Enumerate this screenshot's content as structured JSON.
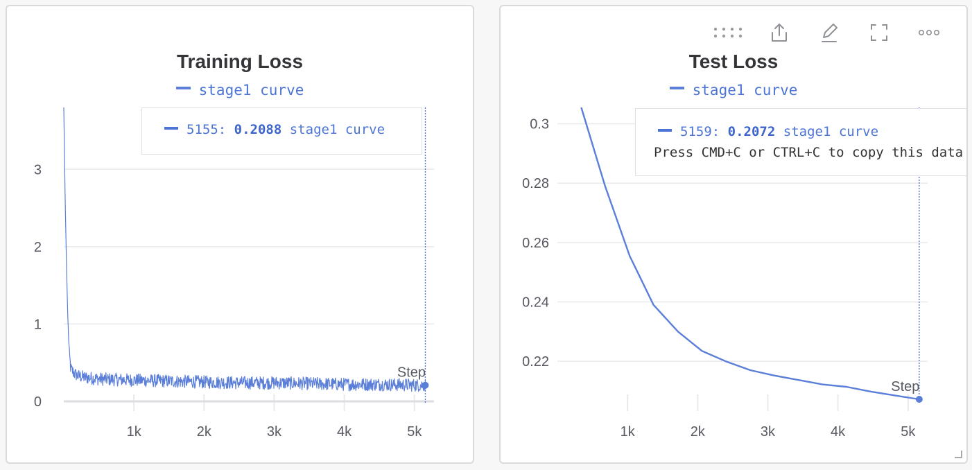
{
  "colors": {
    "series": "#5b7fd8",
    "series_text": "#4c74d6",
    "grid": "#e9eaed",
    "axis": "#dcdde0",
    "tick_text": "#555860"
  },
  "toolbar": {
    "icons": [
      "drag-handle-icon",
      "share-icon",
      "edit-icon",
      "fullscreen-icon",
      "more-icon"
    ]
  },
  "chart_data": [
    {
      "type": "line",
      "title": "Training Loss",
      "xlabel": "Step",
      "ylabel": "",
      "xlim": [
        0,
        5200
      ],
      "ylim": [
        0,
        3.8
      ],
      "x_ticks": [
        1000,
        2000,
        3000,
        4000,
        5000
      ],
      "x_tick_labels": [
        "1k",
        "2k",
        "3k",
        "4k",
        "5k"
      ],
      "y_ticks": [
        0,
        1,
        2,
        3
      ],
      "y_tick_labels": [
        "0",
        "1",
        "2",
        "3"
      ],
      "grid": true,
      "legend_position": "top-center",
      "series": [
        {
          "name": "stage1 curve",
          "noisy": true,
          "x": [
            0,
            20,
            40,
            60,
            80,
            100,
            150,
            200,
            300,
            500,
            800,
            1200,
            1600,
            2000,
            2500,
            3000,
            3500,
            4000,
            4500,
            5000,
            5155
          ],
          "y": [
            3.8,
            2.6,
            1.7,
            1.0,
            0.6,
            0.42,
            0.36,
            0.33,
            0.31,
            0.29,
            0.28,
            0.27,
            0.26,
            0.25,
            0.24,
            0.24,
            0.23,
            0.22,
            0.22,
            0.21,
            0.2088
          ]
        }
      ],
      "hover": {
        "step_label": "5155:",
        "value_label": "0.2088",
        "series_label": "stage1 curve",
        "x": 5155,
        "y": 0.2088
      }
    },
    {
      "type": "line",
      "title": "Test Loss",
      "xlabel": "Step",
      "ylabel": "",
      "xlim": [
        0,
        5200
      ],
      "ylim": [
        0.2065,
        0.3055
      ],
      "x_ticks": [
        1000,
        2000,
        3000,
        4000,
        5000
      ],
      "x_tick_labels": [
        "1k",
        "2k",
        "3k",
        "4k",
        "5k"
      ],
      "y_ticks": [
        0.22,
        0.24,
        0.26,
        0.28,
        0.3
      ],
      "y_tick_labels": [
        "0.22",
        "0.24",
        "0.26",
        "0.28",
        "0.3"
      ],
      "grid": true,
      "legend_position": "top-center",
      "series": [
        {
          "name": "stage1 curve",
          "noisy": false,
          "x": [
            340,
            680,
            1030,
            1370,
            1720,
            2060,
            2400,
            2750,
            3090,
            3440,
            3780,
            4120,
            4470,
            4810,
            5159
          ],
          "y": [
            0.3055,
            0.279,
            0.2555,
            0.239,
            0.23,
            0.2235,
            0.22,
            0.217,
            0.2152,
            0.2137,
            0.2122,
            0.2114,
            0.2098,
            0.2085,
            0.2072
          ]
        }
      ],
      "hover": {
        "step_label": "5159:",
        "value_label": "0.2072",
        "series_label": "stage1 curve",
        "hint": "Press CMD+C or CTRL+C to copy this data",
        "x": 5159,
        "y": 0.2072
      }
    }
  ]
}
